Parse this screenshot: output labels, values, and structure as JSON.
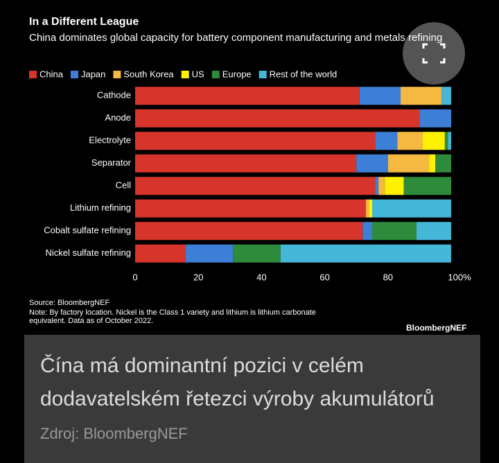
{
  "chart_data": {
    "type": "bar",
    "orientation": "horizontal",
    "stacked": true,
    "title": "In a Different League",
    "subtitle": "China dominates global capacity for battery component manufacturing and metals refining",
    "categories": [
      "Cathode",
      "Anode",
      "Electrolyte",
      "Separator",
      "Cell",
      "Lithium refining",
      "Cobalt sulfate refining",
      "Nickel sulfate refining"
    ],
    "series": [
      {
        "name": "China",
        "color": "#d7352c",
        "values": [
          71,
          90,
          76,
          70,
          76,
          73,
          72,
          16
        ]
      },
      {
        "name": "Japan",
        "color": "#3d7fd6",
        "values": [
          13,
          10,
          7,
          10,
          1,
          0,
          3,
          15
        ]
      },
      {
        "name": "South Korea",
        "color": "#f5b942",
        "values": [
          13,
          0,
          8,
          13,
          2,
          1,
          0,
          0
        ]
      },
      {
        "name": "US",
        "color": "#fff200",
        "values": [
          0,
          0,
          7,
          2,
          6,
          1,
          0,
          0
        ]
      },
      {
        "name": "Europe",
        "color": "#2e8b3c",
        "values": [
          0,
          0,
          1,
          5,
          15,
          0,
          14,
          15
        ]
      },
      {
        "name": "Rest of the world",
        "color": "#45b8d9",
        "values": [
          3,
          0,
          1,
          0,
          0,
          25,
          11,
          54
        ]
      }
    ],
    "xlim": [
      0,
      100
    ],
    "xticks": [
      0,
      20,
      40,
      60,
      80,
      {
        "value": 100,
        "label": "100%"
      }
    ],
    "legend": "top-left",
    "source": "Source: BloombergNEF",
    "note": "Note: By factory location. Nickel is the Class 1 variety and lithium is lithium carbonate equivalent. Data as of October 2022.",
    "logo": "BloombergNEF"
  },
  "caption": {
    "headline": "Čína má dominantní pozici v celém dodavatelském řetezci výroby akumulátorů",
    "credit": "Zdroj: BloombergNEF"
  }
}
